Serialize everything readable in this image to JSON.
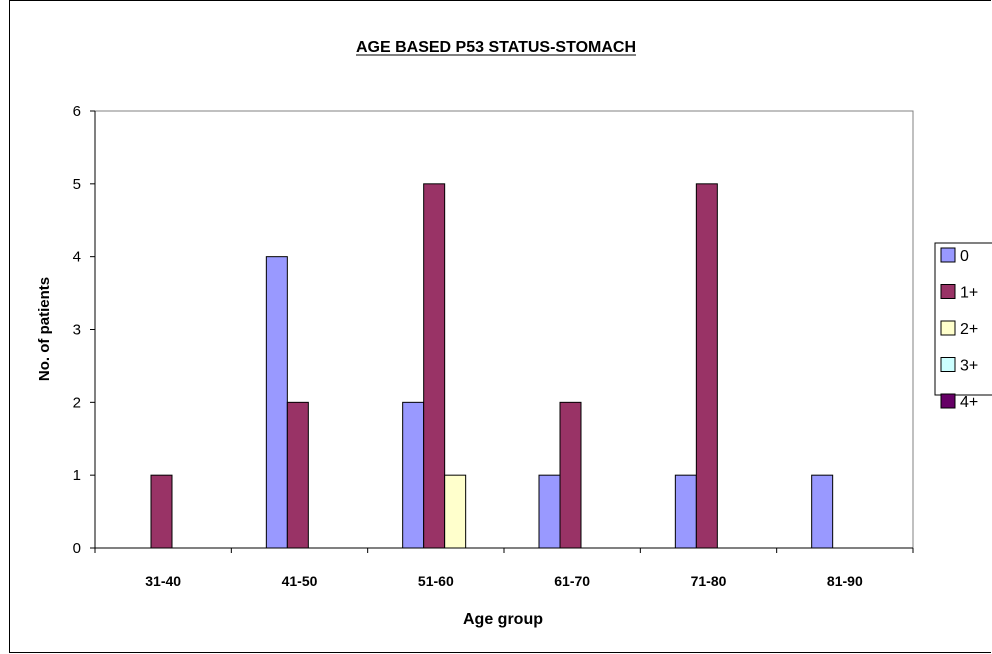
{
  "chart_data": {
    "type": "bar",
    "title": "AGE BASED P53 STATUS-STOMACH",
    "xlabel": "Age group",
    "ylabel": "No. of patients",
    "categories": [
      "31-40",
      "41-50",
      "51-60",
      "61-70",
      "71-80",
      "81-90"
    ],
    "series": [
      {
        "name": "0",
        "color": "#9999ff",
        "values": [
          0,
          4,
          2,
          1,
          1,
          1
        ]
      },
      {
        "name": "1+",
        "color": "#993366",
        "values": [
          1,
          2,
          5,
          2,
          5,
          0
        ]
      },
      {
        "name": "2+",
        "color": "#ffffcc",
        "values": [
          0,
          0,
          1,
          0,
          0,
          0
        ]
      },
      {
        "name": "3+",
        "color": "#ccffff",
        "values": [
          0,
          0,
          0,
          0,
          0,
          0
        ]
      },
      {
        "name": "4+",
        "color": "#660066",
        "values": [
          0,
          0,
          0,
          0,
          0,
          0
        ]
      }
    ],
    "yticks": [
      "0",
      "1",
      "2",
      "3",
      "4",
      "5",
      "6"
    ],
    "ylim": [
      0,
      6
    ],
    "grid": false,
    "legend_position": "right"
  }
}
